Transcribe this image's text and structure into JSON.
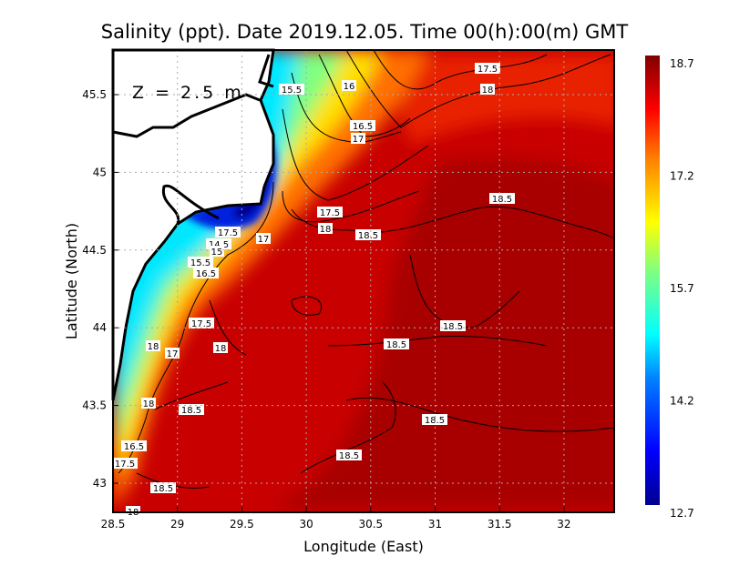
{
  "title": "Salinity (ppt). Date 2019.12.05. Time 00(h):00(m) GMT",
  "depth_label": "Z = 2.5 m",
  "xlabel": "Longitude (East)",
  "ylabel": "Latitude (North)",
  "x_ticks": [
    "28.5",
    "29",
    "29.5",
    "30",
    "30.5",
    "31",
    "31.5",
    "32"
  ],
  "y_ticks": [
    "45.5",
    "45",
    "44.5",
    "44",
    "43.5",
    "43"
  ],
  "colorbar": {
    "min": 12.7,
    "max": 18.7,
    "tick_labels": [
      "18.7",
      "17.2",
      "15.7",
      "14.2",
      "12.7"
    ],
    "colors": [
      "#00008f",
      "#0000ff",
      "#0080ff",
      "#00ffff",
      "#80ff80",
      "#ffff00",
      "#ff8000",
      "#ff0000",
      "#800000"
    ]
  },
  "contour_labels": [
    "17.5",
    "18",
    "15.5",
    "16",
    "16.5",
    "17",
    "17.5",
    "18",
    "18.5",
    "18.5",
    "17.5",
    "14.5",
    "15",
    "17",
    "15.5",
    "16.5",
    "17.5",
    "18",
    "17",
    "18",
    "18",
    "18.5",
    "18.5",
    "18.5",
    "18.5",
    "16.5",
    "17.5",
    "18.5",
    "18.5",
    "18"
  ],
  "chart_data": {
    "type": "heatmap",
    "title": "Salinity (ppt). Date 2019.12.05. Time 00(h):00(m) GMT",
    "xlabel": "Longitude (East)",
    "ylabel": "Latitude (North)",
    "xlim": [
      28.5,
      32.4
    ],
    "ylim": [
      42.8,
      45.8
    ],
    "zlim": [
      12.7,
      18.7
    ],
    "grid": true,
    "legend": "right colorbar"
  }
}
